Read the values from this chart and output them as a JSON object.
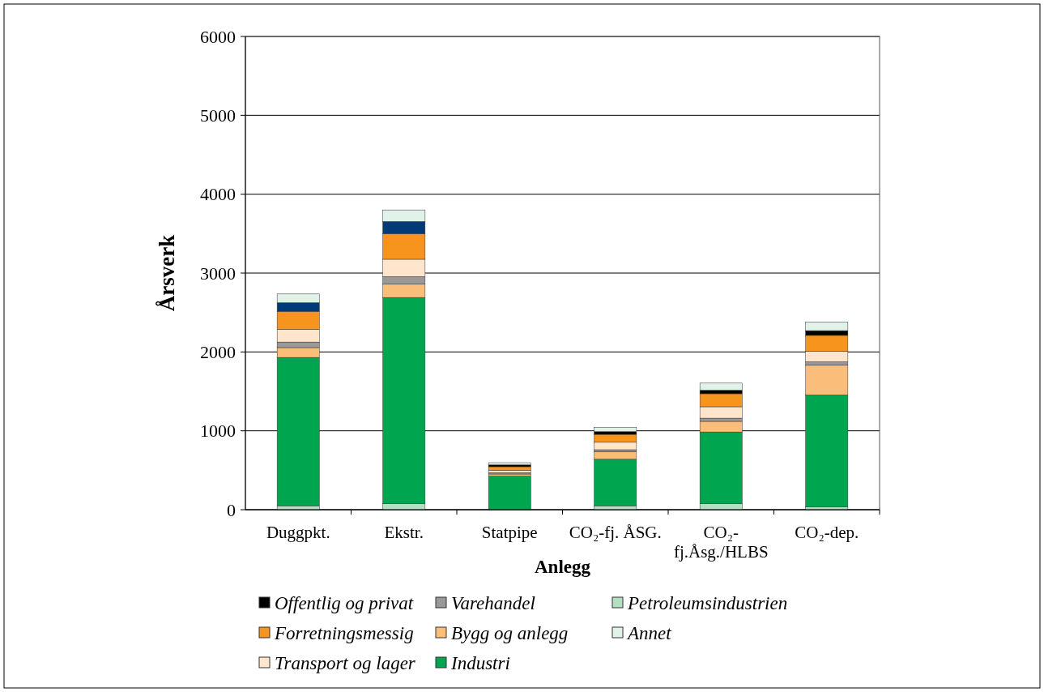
{
  "chart_data": {
    "type": "bar",
    "stacked": true,
    "xlabel": "Anlegg",
    "ylabel": "Årsverk",
    "categories": [
      "Duggpkt.",
      "Ekstr.",
      "Statpipe",
      "CO₂-fj. ÅSG.",
      "CO₂-fj.Åsg./HLBS",
      "CO₂-dep."
    ],
    "series": [
      {
        "name": "Petroleumsindustrien",
        "color": "#b3dfc2",
        "values": [
          50,
          75,
          null,
          50,
          75,
          35
        ]
      },
      {
        "name": "Industri",
        "color": "#00a550",
        "values": [
          1880,
          2615,
          425,
          590,
          910,
          1420
        ]
      },
      {
        "name": "Bygg og anlegg",
        "color": "#fbbd7a",
        "values": [
          125,
          170,
          27,
          95,
          135,
          380
        ]
      },
      {
        "name": "Varehandel",
        "color": "#999999",
        "values": [
          70,
          95,
          18,
          25,
          40,
          40
        ]
      },
      {
        "name": "Transport og lager",
        "color": "#fee5cb",
        "values": [
          160,
          220,
          30,
          95,
          145,
          135
        ]
      },
      {
        "name": "Forretningsmessig",
        "color": "#f7941d",
        "values": [
          230,
          325,
          45,
          100,
          165,
          200
        ]
      },
      {
        "name": "Offentlig og privat",
        "color": "#000000",
        "colors": [
          "#003a78",
          "#003a78",
          "#000000",
          "#000000",
          "#000000",
          "#000000"
        ],
        "values": [
          110,
          155,
          23,
          35,
          45,
          60
        ]
      },
      {
        "name": "Annet",
        "color": "#e1f2e8",
        "values": [
          110,
          145,
          28,
          55,
          90,
          110
        ]
      }
    ],
    "ylim": [
      0,
      6000
    ],
    "yticks": [
      0,
      1000,
      2000,
      3000,
      4000,
      5000,
      6000
    ],
    "grid": "y",
    "legend": "bottom"
  }
}
